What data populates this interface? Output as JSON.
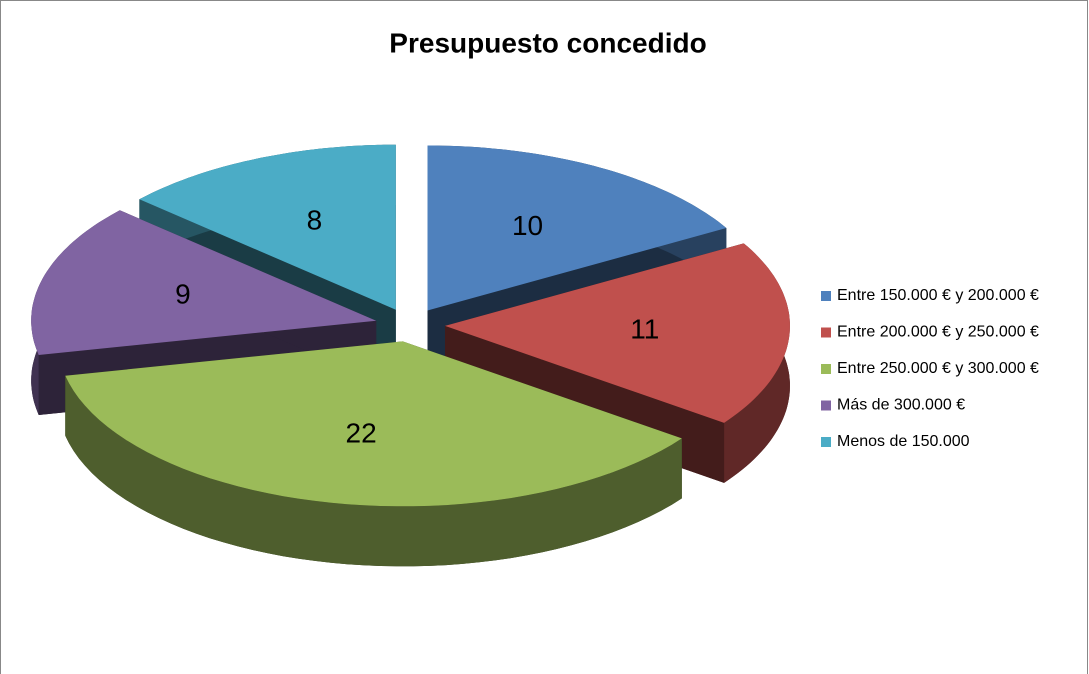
{
  "chart_data": {
    "type": "pie3d",
    "title": "Presupuesto concedido",
    "categories": [
      "Entre 150.000 € y 200.000 €",
      "Entre 200.000 € y 250.000 €",
      "Entre 250.000 € y 300.000 €",
      "Más de 300.000 €",
      "Menos de 150.000"
    ],
    "values": [
      10,
      11,
      22,
      9,
      8
    ],
    "colors": [
      "#4f81bd",
      "#c0504d",
      "#9bbb59",
      "#8064a2",
      "#4bacc6"
    ],
    "legend": "right"
  }
}
